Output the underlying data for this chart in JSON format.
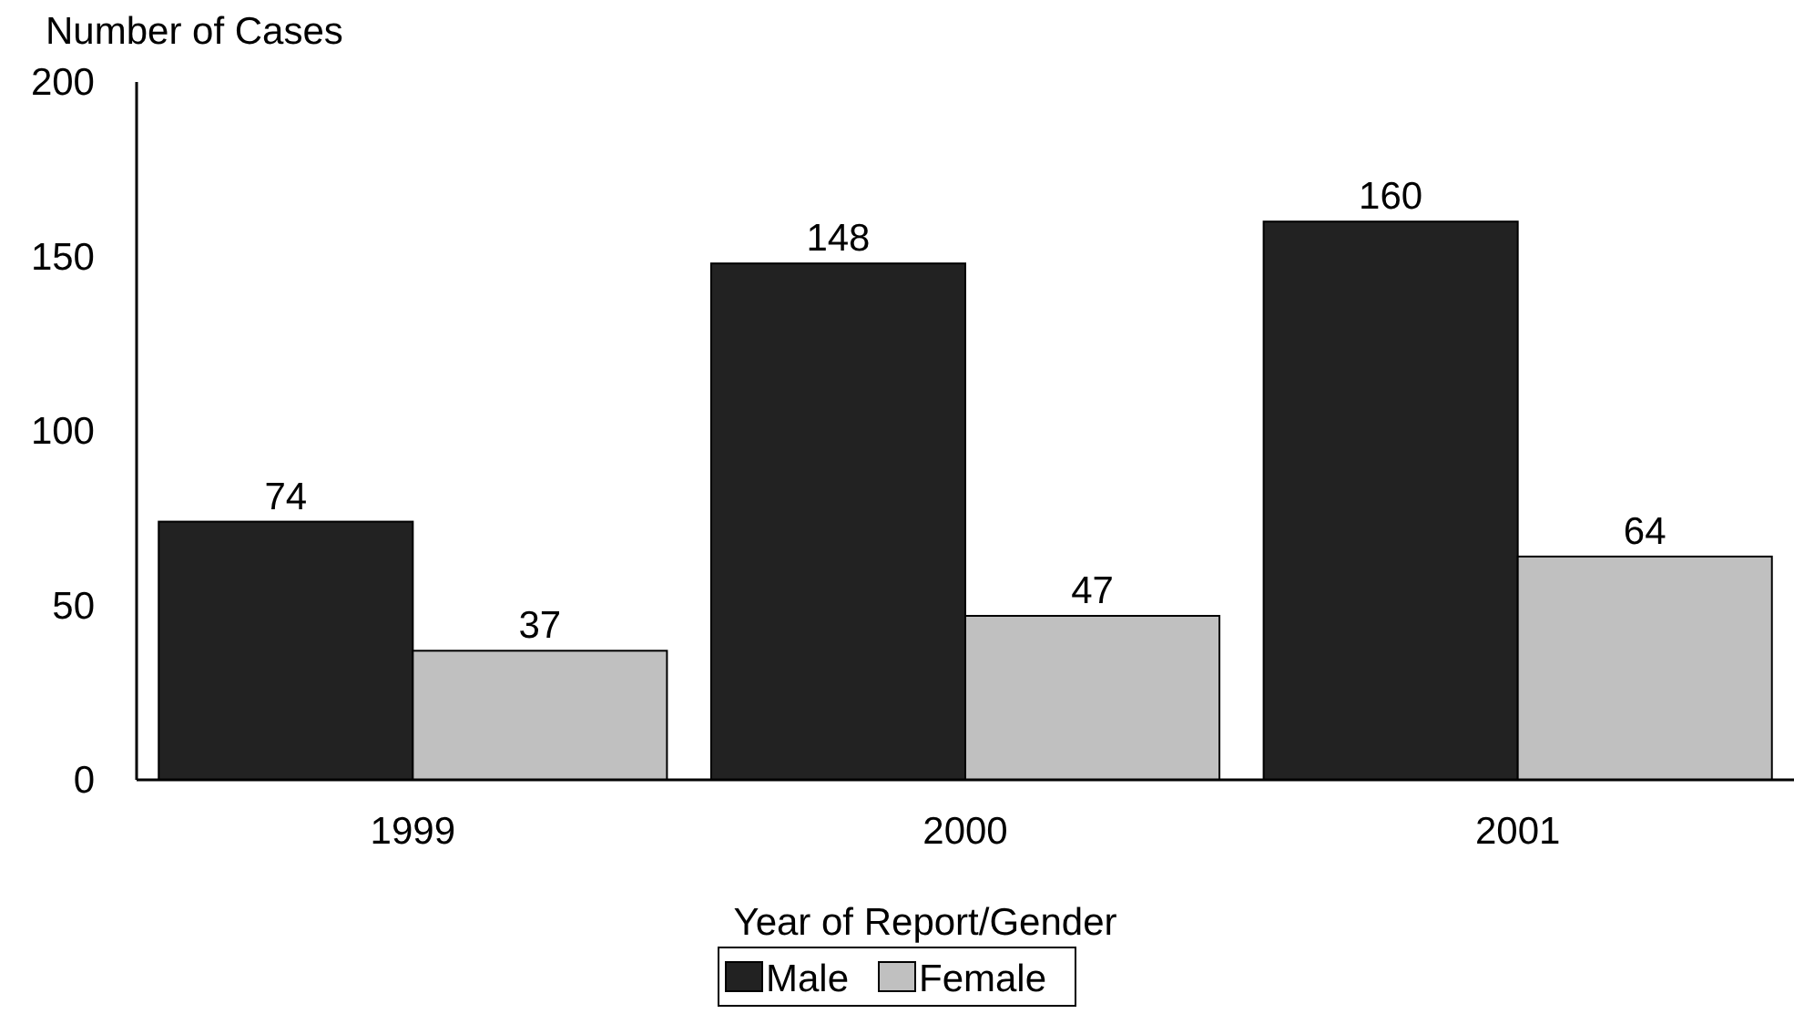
{
  "chart_data": {
    "type": "bar",
    "ylabel": "Number of Cases",
    "xlabel": "Year of Report/Gender",
    "categories": [
      "1999",
      "2000",
      "2001"
    ],
    "series": [
      {
        "name": "Male",
        "color": "#222222",
        "values": [
          74,
          148,
          160
        ]
      },
      {
        "name": "Female",
        "color": "#c0c0c0",
        "values": [
          37,
          47,
          64
        ]
      }
    ],
    "ylim": [
      0,
      200
    ],
    "yticks": [
      0,
      50,
      100,
      150,
      200
    ],
    "data_labels": true,
    "legend": "bottom",
    "grid": false
  }
}
